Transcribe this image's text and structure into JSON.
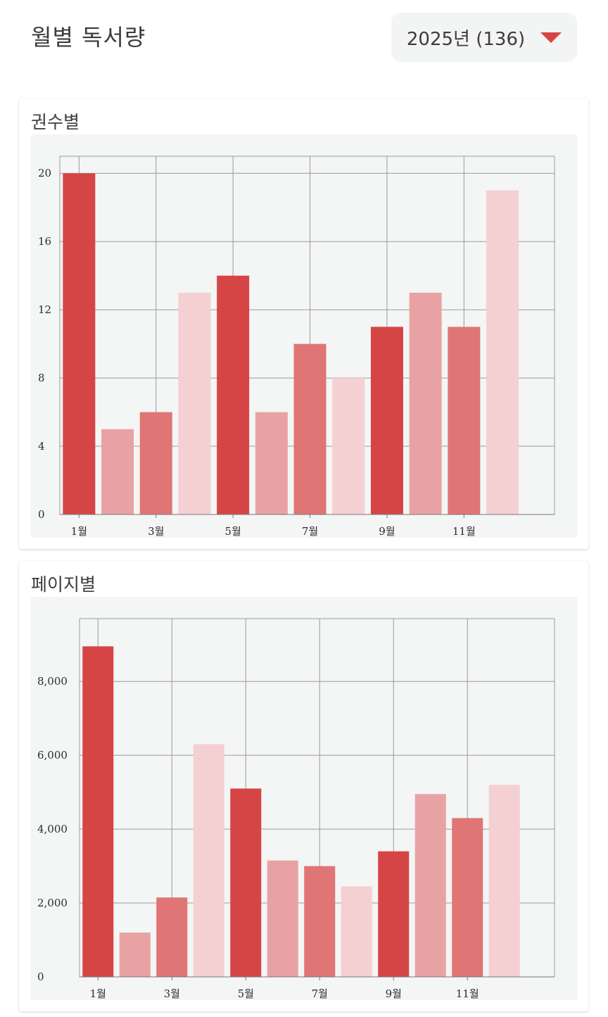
{
  "header": {
    "title": "월별 독서량",
    "year_selector": "2025년 (136)"
  },
  "charts": [
    {
      "title": "권수별"
    },
    {
      "title": "페이지별"
    }
  ],
  "colors": {
    "accent": "#d64545",
    "dark": "#d64545",
    "mid_light": "#e9a2a3",
    "mid": "#e07575",
    "light": "#f4d0d2",
    "plot_bg": "#f4f5f5"
  },
  "chart_data": [
    {
      "type": "bar",
      "title": "권수별",
      "categories": [
        "1월",
        "2월",
        "3월",
        "4월",
        "5월",
        "6월",
        "7월",
        "8월",
        "9월",
        "10월",
        "11월",
        "12월"
      ],
      "values": [
        20,
        5,
        6,
        13,
        14,
        6,
        10,
        8,
        11,
        13,
        11,
        19
      ],
      "x_tick_labels": [
        "1월",
        "3월",
        "5월",
        "7월",
        "9월",
        "11월"
      ],
      "y_tick_labels": [
        "0",
        "4",
        "8",
        "12",
        "16",
        "20"
      ],
      "yticks": [
        0,
        4,
        8,
        12,
        16,
        20
      ],
      "ylim": [
        0,
        21
      ],
      "grid": true
    },
    {
      "type": "bar",
      "title": "페이지별",
      "categories": [
        "1월",
        "2월",
        "3월",
        "4월",
        "5월",
        "6월",
        "7월",
        "8월",
        "9월",
        "10월",
        "11월",
        "12월"
      ],
      "values": [
        8950,
        1200,
        2150,
        6300,
        5100,
        3150,
        3000,
        2450,
        3400,
        4950,
        4300,
        5200
      ],
      "x_tick_labels": [
        "1월",
        "3월",
        "5월",
        "7월",
        "9월",
        "11월"
      ],
      "y_tick_labels": [
        "0",
        "2,000",
        "4,000",
        "6,000",
        "8,000"
      ],
      "yticks": [
        0,
        2000,
        4000,
        6000,
        8000
      ],
      "ylim": [
        0,
        9700
      ],
      "grid": true
    }
  ]
}
